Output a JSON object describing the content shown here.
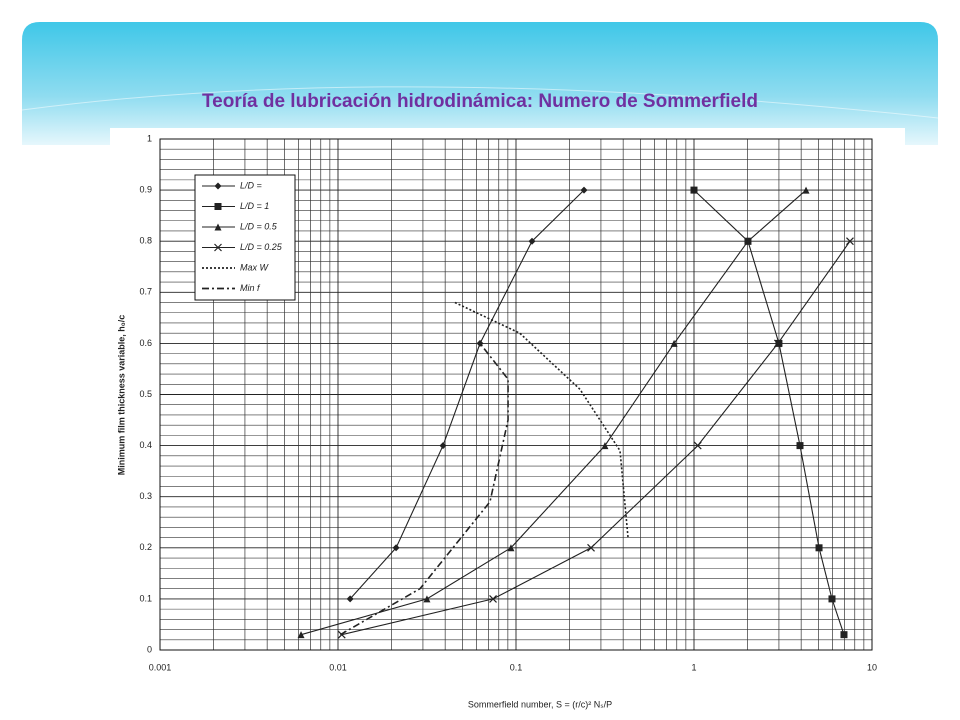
{
  "slide": {
    "title": "Teoría de lubricación hidrodinámica: Numero de Sommerfield"
  },
  "chart_data": {
    "type": "line",
    "xscale": "log",
    "grid": true,
    "minor_grid": true,
    "legend": "upper left",
    "xlabel": "Sommerfield number, S = (r/c)² Nₛ/P",
    "ylabel": "Minimum film thickness variable, h₀/c",
    "xlim": [
      0.001,
      10
    ],
    "xticks": [
      0.001,
      0.01,
      0.1,
      1,
      10
    ],
    "ylim": [
      0,
      1
    ],
    "yticks": [
      0,
      0.1,
      0.2,
      0.3,
      0.4,
      0.5,
      0.6,
      0.7,
      0.8,
      0.9,
      1
    ],
    "series": [
      {
        "name": "L/D =",
        "color": "#222222",
        "marker": "diamond",
        "dash": "solid",
        "x": [
          0.0117,
          0.0212,
          0.0389,
          0.0628,
          0.123,
          0.241
        ],
        "values": [
          0.1,
          0.2,
          0.4,
          0.6,
          0.8,
          0.9
        ]
      },
      {
        "name": "L/D = 1",
        "color": "#222222",
        "marker": "square",
        "dash": "solid",
        "x": [
          1.0,
          2.01,
          3.0,
          3.94,
          5.04,
          5.96,
          6.96
        ],
        "values": [
          0.9,
          0.8,
          0.6,
          0.4,
          0.2,
          0.1,
          0.03
        ]
      },
      {
        "name": "L/D = 0.5",
        "color": "#222222",
        "marker": "triangle",
        "dash": "solid",
        "x": [
          0.0062,
          0.0316,
          0.0937,
          0.316,
          0.773,
          2.01,
          4.26
        ],
        "values": [
          0.03,
          0.1,
          0.2,
          0.4,
          0.6,
          0.8,
          0.9
        ]
      },
      {
        "name": "L/D = 0.25",
        "color": "#222222",
        "marker": "x",
        "dash": "solid",
        "x": [
          0.0105,
          0.0743,
          0.264,
          1.05,
          2.96,
          7.52
        ],
        "values": [
          0.03,
          0.1,
          0.2,
          0.4,
          0.6,
          0.8
        ]
      },
      {
        "name": "Max W",
        "color": "#222222",
        "marker": "none",
        "dash": "dotted",
        "x": [
          0.0454,
          0.105,
          0.229,
          0.384,
          0.426
        ],
        "values": [
          0.68,
          0.62,
          0.51,
          0.39,
          0.22
        ]
      },
      {
        "name": "Min f",
        "color": "#222222",
        "marker": "none",
        "dash": "dashdot",
        "x": [
          0.0103,
          0.0289,
          0.0714,
          0.0902,
          0.0902,
          0.0628
        ],
        "values": [
          0.03,
          0.12,
          0.29,
          0.45,
          0.53,
          0.6
        ]
      }
    ]
  }
}
